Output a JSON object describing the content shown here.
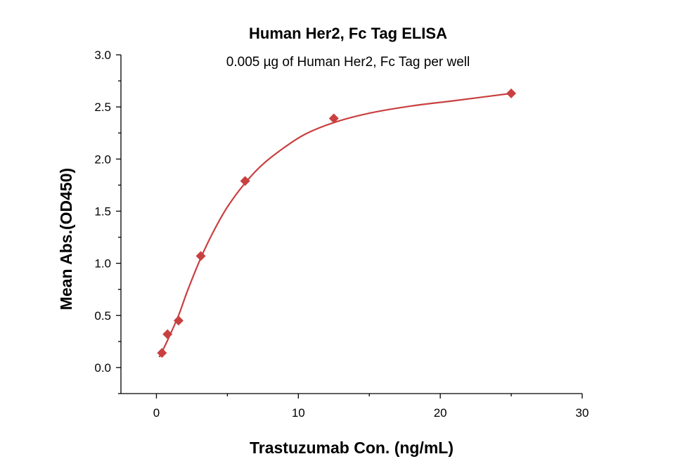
{
  "chart_data": {
    "type": "scatter",
    "title": "Human Her2, Fc Tag ELISA",
    "subtitle": "0.005 µg of Human Her2, Fc Tag per well",
    "xlabel": "Trastuzumab Con. (ng/mL)",
    "ylabel": "Mean Abs.(OD450)",
    "xlim": [
      -2.5,
      30
    ],
    "ylim": [
      -0.25,
      3.0
    ],
    "xticks": [
      0,
      10,
      20,
      30
    ],
    "yticks": [
      0.0,
      0.5,
      1.0,
      1.5,
      2.0,
      2.5,
      3.0
    ],
    "grid": false,
    "colors": {
      "series": "#c94040",
      "axis": "#000000"
    },
    "series": [
      {
        "marker": "diamond",
        "x": [
          0.39,
          0.78,
          1.56,
          3.125,
          6.25,
          12.5,
          25
        ],
        "y": [
          0.14,
          0.32,
          0.45,
          1.07,
          1.79,
          2.39,
          2.63
        ]
      }
    ],
    "fit_curve": {
      "x": [
        0.2,
        0.39,
        0.78,
        1.56,
        2.2,
        3.125,
        4.0,
        5.0,
        6.25,
        7.5,
        9.0,
        10.5,
        12.5,
        15.0,
        18.0,
        21.0,
        25.0
      ],
      "y": [
        0.1,
        0.15,
        0.26,
        0.5,
        0.74,
        1.05,
        1.3,
        1.54,
        1.77,
        1.95,
        2.11,
        2.24,
        2.35,
        2.44,
        2.51,
        2.56,
        2.63
      ]
    }
  }
}
